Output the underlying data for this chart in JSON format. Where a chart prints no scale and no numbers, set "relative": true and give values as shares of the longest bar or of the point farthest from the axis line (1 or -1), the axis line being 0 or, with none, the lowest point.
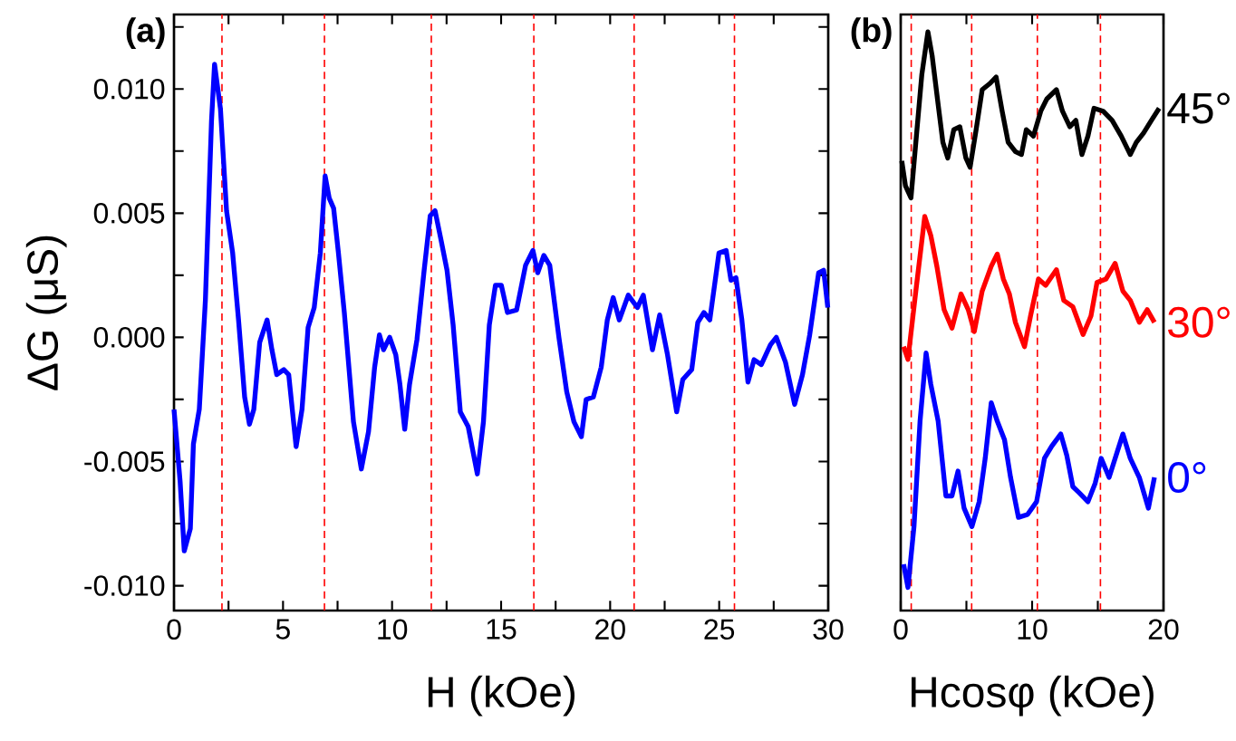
{
  "chart_data": [
    {
      "type": "line",
      "title": "(a)",
      "xlabel": "H (kOe)",
      "ylabel": "ΔG (μS)",
      "xlim": [
        0,
        30
      ],
      "ylim": [
        -0.011,
        0.013
      ],
      "xticks": [
        0,
        {
          "value": 2.5,
          "label": null
        },
        5,
        {
          "value": 7.5,
          "label": null
        },
        10,
        {
          "value": 12.5,
          "label": null
        },
        15,
        {
          "value": 17.5,
          "label": null
        },
        20,
        {
          "value": 22.5,
          "label": null
        },
        25,
        {
          "value": 27.5,
          "label": null
        },
        30
      ],
      "yticks": [
        {
          "value": -0.01,
          "label": "-0.010"
        },
        {
          "value": -0.0075,
          "label": null
        },
        {
          "value": -0.005,
          "label": "-0.005"
        },
        {
          "value": -0.0025,
          "label": null
        },
        {
          "value": 0,
          "label": "0.000"
        },
        {
          "value": 0.0025,
          "label": null
        },
        {
          "value": 0.005,
          "label": "0.005"
        },
        {
          "value": 0.0075,
          "label": null
        },
        {
          "value": 0.01,
          "label": "0.010"
        },
        {
          "value": 0.0125,
          "label": null
        }
      ],
      "ref_lines": [
        {
          "axis": "x",
          "value": 2.2,
          "color": "#ff0000",
          "line_style": "dashed"
        },
        {
          "axis": "x",
          "value": 6.9,
          "color": "#ff0000",
          "line_style": "dashed"
        },
        {
          "axis": "x",
          "value": 11.8,
          "color": "#ff0000",
          "line_style": "dashed"
        },
        {
          "axis": "x",
          "value": 16.5,
          "color": "#ff0000",
          "line_style": "dashed"
        },
        {
          "axis": "x",
          "value": 21.1,
          "color": "#ff0000",
          "line_style": "dashed"
        },
        {
          "axis": "x",
          "value": 25.7,
          "color": "#ff0000",
          "line_style": "dashed"
        }
      ],
      "series": [
        {
          "color": "#0000ff",
          "x": [
            0,
            0.28,
            0.47,
            0.75,
            0.89,
            1.16,
            1.44,
            1.72,
            1.86,
            2.13,
            2.41,
            2.69,
            2.96,
            3.24,
            3.46,
            3.66,
            3.93,
            4.27,
            4.49,
            4.71,
            5.04,
            5.26,
            5.6,
            5.87,
            6.15,
            6.43,
            6.71,
            6.93,
            7.12,
            7.32,
            7.54,
            7.81,
            8.23,
            8.59,
            8.92,
            9.2,
            9.42,
            9.61,
            9.89,
            10.17,
            10.36,
            10.58,
            10.8,
            11.14,
            11.47,
            11.75,
            11.97,
            12.25,
            12.52,
            12.8,
            13.13,
            13.49,
            13.91,
            14.19,
            14.46,
            14.74,
            15.01,
            15.29,
            15.71,
            16.12,
            16.46,
            16.68,
            16.96,
            17.23,
            17.65,
            18.01,
            18.34,
            18.68,
            18.9,
            19.23,
            19.59,
            19.87,
            20.14,
            20.42,
            20.83,
            21.25,
            21.52,
            21.94,
            22.27,
            22.63,
            23.05,
            23.33,
            23.74,
            24.02,
            24.3,
            24.57,
            24.99,
            25.32,
            25.54,
            25.77,
            26.04,
            26.32,
            26.6,
            26.93,
            27.35,
            27.62,
            28.04,
            28.46,
            28.82,
            29.15,
            29.56,
            29.79,
            29.98
          ],
          "values": [
            -0.0029,
            -0.0058,
            -0.0086,
            -0.0077,
            -0.0043,
            -0.0029,
            0.0015,
            0.0087,
            0.011,
            0.0092,
            0.0051,
            0.0034,
            0.0007,
            -0.0024,
            -0.0035,
            -0.0029,
            -0.0002,
            0.0007,
            -0.0005,
            -0.0015,
            -0.0013,
            -0.0015,
            -0.0044,
            -0.0029,
            0.0004,
            0.0012,
            0.0034,
            0.0065,
            0.0056,
            0.0052,
            0.0034,
            0.001,
            -0.0034,
            -0.0053,
            -0.0038,
            -0.0012,
            0.0001,
            -0.0005,
            0.0,
            -0.0007,
            -0.0019,
            -0.0037,
            -0.0019,
            -0.0001,
            0.0027,
            0.0049,
            0.0051,
            0.0039,
            0.0027,
            0.0005,
            -0.003,
            -0.0036,
            -0.0055,
            -0.0034,
            0.0005,
            0.0021,
            0.0021,
            0.001,
            0.0011,
            0.0029,
            0.0035,
            0.0026,
            0.0033,
            0.0029,
            0.0,
            -0.0022,
            -0.0034,
            -0.004,
            -0.0025,
            -0.0024,
            -0.0012,
            0.0007,
            0.0016,
            0.0007,
            0.0017,
            0.0012,
            0.0017,
            -0.0005,
            0.0009,
            -0.0007,
            -0.003,
            -0.0017,
            -0.0013,
            0.0006,
            0.001,
            0.0007,
            0.0034,
            0.0035,
            0.0023,
            0.0024,
            0.0007,
            -0.0018,
            -0.0009,
            -0.0011,
            -0.0003,
            0.0,
            -0.001,
            -0.0027,
            -0.0015,
            0.0001,
            0.0026,
            0.0027,
            0.0012
          ]
        }
      ]
    },
    {
      "type": "line",
      "title": "(b)",
      "xlabel": "Hcosφ (kOe)",
      "relative": true,
      "tick_labels": "x",
      "xlim": [
        0,
        20
      ],
      "xticks": [
        0,
        {
          "value": 5,
          "label": null
        },
        10,
        {
          "value": 15,
          "label": null
        },
        20
      ],
      "ref_lines": [
        {
          "axis": "x",
          "value": 0.8,
          "color": "#ff0000",
          "line_style": "dashed"
        },
        {
          "axis": "x",
          "value": 5.4,
          "color": "#ff0000",
          "line_style": "dashed"
        },
        {
          "axis": "x",
          "value": 10.4,
          "color": "#ff0000",
          "line_style": "dashed"
        },
        {
          "axis": "x",
          "value": 15.2,
          "color": "#ff0000",
          "line_style": "dashed"
        }
      ],
      "series": [
        {
          "name": "45°",
          "color": "#000000",
          "x": [
            0.08,
            0.36,
            0.78,
            1.15,
            1.61,
            2.07,
            2.39,
            2.85,
            3.21,
            3.58,
            4.04,
            4.5,
            4.96,
            5.28,
            5.74,
            6.2,
            6.8,
            7.26,
            7.72,
            8.18,
            8.73,
            9.19,
            9.56,
            10.1,
            10.66,
            11.12,
            11.85,
            12.31,
            12.87,
            13.33,
            13.79,
            14.25,
            14.71,
            15.4,
            16.09,
            16.78,
            17.47,
            17.93,
            18.48,
            19.08,
            19.67
          ],
          "values": [
            0.777,
            0.734,
            0.713,
            0.809,
            0.927,
            1.0,
            0.959,
            0.874,
            0.809,
            0.782,
            0.831,
            0.836,
            0.782,
            0.766,
            0.831,
            0.9,
            0.911,
            0.922,
            0.863,
            0.809,
            0.793,
            0.788,
            0.831,
            0.82,
            0.863,
            0.884,
            0.9,
            0.863,
            0.836,
            0.847,
            0.788,
            0.82,
            0.868,
            0.863,
            0.847,
            0.82,
            0.788,
            0.809,
            0.825,
            0.847,
            0.868
          ]
        },
        {
          "name": "30°",
          "color": "#ff0000",
          "x": [
            0.22,
            0.55,
            1.15,
            1.83,
            2.29,
            2.75,
            3.3,
            3.9,
            4.59,
            5.14,
            5.6,
            6.2,
            6.89,
            7.35,
            7.81,
            8.27,
            8.73,
            9.42,
            9.88,
            10.48,
            11.03,
            11.85,
            12.41,
            13.1,
            13.88,
            14.48,
            14.94,
            15.63,
            16.32,
            16.91,
            17.47,
            18.16,
            18.76,
            19.31
          ],
          "values": [
            0.456,
            0.434,
            0.552,
            0.681,
            0.648,
            0.595,
            0.52,
            0.488,
            0.547,
            0.52,
            0.482,
            0.552,
            0.595,
            0.616,
            0.573,
            0.547,
            0.498,
            0.456,
            0.509,
            0.573,
            0.562,
            0.589,
            0.536,
            0.525,
            0.477,
            0.509,
            0.567,
            0.573,
            0.6,
            0.552,
            0.536,
            0.498,
            0.52,
            0.498
          ]
        },
        {
          "name": "0°",
          "color": "#0000ff",
          "x": [
            0.22,
            0.55,
            1.01,
            1.47,
            1.93,
            2.29,
            2.85,
            3.44,
            3.9,
            4.36,
            4.82,
            5.42,
            5.97,
            6.43,
            6.89,
            7.35,
            7.9,
            8.36,
            8.96,
            9.65,
            10.34,
            10.94,
            11.49,
            12.18,
            12.64,
            13.1,
            13.56,
            14.25,
            14.8,
            15.26,
            15.86,
            16.46,
            16.91,
            17.47,
            18.16,
            18.85,
            19.31
          ],
          "values": [
            0.08,
            0.04,
            0.145,
            0.327,
            0.445,
            0.391,
            0.327,
            0.198,
            0.198,
            0.241,
            0.177,
            0.145,
            0.188,
            0.263,
            0.359,
            0.327,
            0.295,
            0.23,
            0.161,
            0.166,
            0.188,
            0.263,
            0.284,
            0.305,
            0.268,
            0.214,
            0.204,
            0.188,
            0.22,
            0.263,
            0.23,
            0.273,
            0.305,
            0.263,
            0.23,
            0.177,
            0.23
          ]
        }
      ]
    }
  ]
}
